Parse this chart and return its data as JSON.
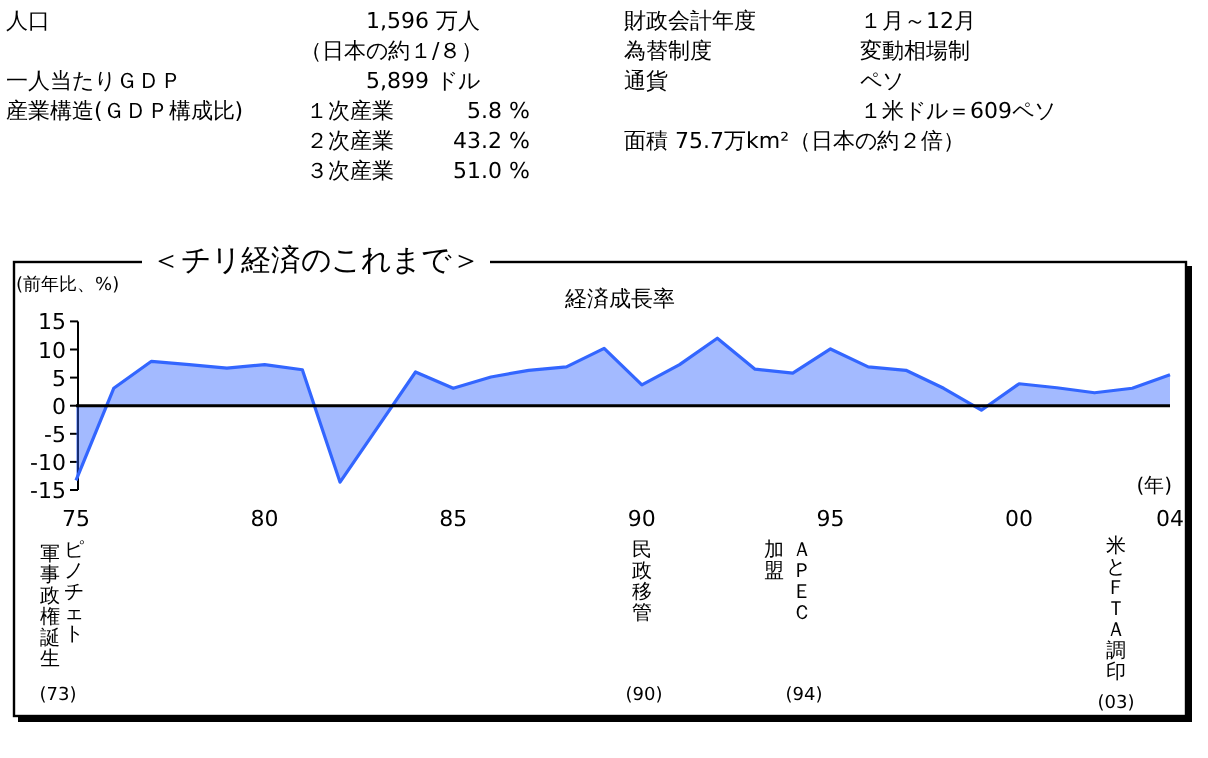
{
  "chart_data": {
    "type": "area",
    "title": "＜チリ経済のこれまで＞",
    "subtitle": "経済成長率",
    "ylabel": "(前年比、%)",
    "xlabel": "(年)",
    "x": [
      1975,
      1976,
      1977,
      1978,
      1979,
      1980,
      1981,
      1982,
      1983,
      1984,
      1985,
      1986,
      1987,
      1988,
      1989,
      1990,
      1991,
      1992,
      1993,
      1994,
      1995,
      1996,
      1997,
      1998,
      1999,
      2000,
      2001,
      2002,
      2003,
      2004
    ],
    "series": [
      {
        "color": "#3366ff",
        "values": [
          -13.3,
          3.1,
          7.9,
          7.3,
          6.7,
          7.3,
          6.4,
          -13.6,
          -3.8,
          6.0,
          3.1,
          5.1,
          6.3,
          6.9,
          10.2,
          3.7,
          7.3,
          12.0,
          6.5,
          5.8,
          10.1,
          6.9,
          6.3,
          3.1,
          -0.8,
          3.9,
          3.2,
          2.3,
          3.1,
          5.5
        ]
      }
    ],
    "xlim": [
      1975,
      2004
    ],
    "ylim": [
      -15,
      15
    ],
    "xticks": [
      {
        "value": 1975,
        "label": "75"
      },
      {
        "value": 1980,
        "label": "80"
      },
      {
        "value": 1985,
        "label": "85"
      },
      {
        "value": 1990,
        "label": "90"
      },
      {
        "value": 1995,
        "label": "95"
      },
      {
        "value": 2000,
        "label": "00"
      },
      {
        "value": 2004,
        "label": "04"
      }
    ],
    "yticks": [
      -15,
      -10,
      -5,
      0,
      5,
      10,
      15
    ],
    "annotations": [
      "人口",
      "1,596 万人",
      "（日本の約１/８）",
      "一人当たりＧＤＰ",
      "5,899 ドル",
      "産業構造(ＧＤＰ構成比)",
      "１次産業",
      "5.8 %",
      "２次産業",
      "43.2 %",
      "３次産業",
      "51.0 %",
      "財政会計年度",
      "１月～12月",
      "為替制度",
      "変動相場制",
      "通貨",
      "ペソ",
      "１米ドル＝609ペソ",
      "面積 75.7万km²（日本の約２倍）",
      "ピノチェト",
      "軍事政権誕生",
      "(73)",
      "民政移管",
      "(90)",
      "ＡＰＥＣ",
      "加盟",
      "(94)",
      "米とＦＴＡ調印",
      "(03)"
    ]
  }
}
